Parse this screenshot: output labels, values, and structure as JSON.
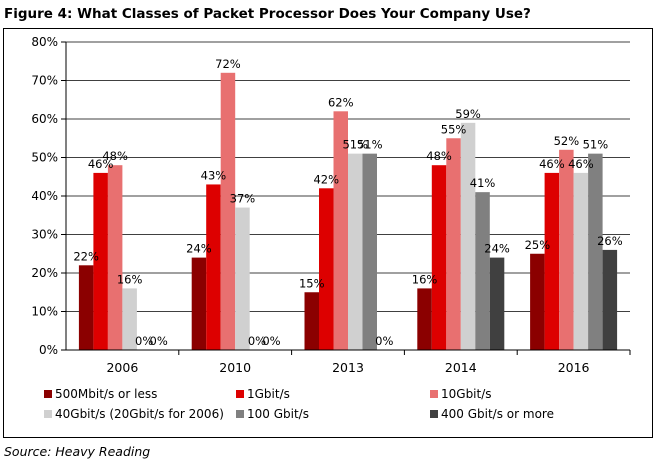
{
  "title": "Figure 4: What Classes of Packet Processor Does Your Company Use?",
  "source": "Source: Heavy Reading",
  "chart_data": {
    "type": "bar",
    "title": "Figure 4: What Classes of Packet Processor Does Your Company Use?",
    "xlabel": "",
    "ylabel": "",
    "categories": [
      "2006",
      "2010",
      "2013",
      "2014",
      "2016"
    ],
    "ylim": [
      0,
      80
    ],
    "yticks": [
      "0%",
      "10%",
      "20%",
      "30%",
      "40%",
      "50%",
      "60%",
      "70%",
      "80%"
    ],
    "grid": true,
    "legend_position": "bottom",
    "series": [
      {
        "name": "500Mbit/s or less",
        "color": "#8b0000",
        "values": [
          22,
          24,
          15,
          16,
          25
        ],
        "labels": [
          "22%",
          "24%",
          "15%",
          "16%",
          "25%"
        ]
      },
      {
        "name": "1Gbit/s",
        "color": "#dd0000",
        "values": [
          46,
          43,
          42,
          48,
          46
        ],
        "labels": [
          "46%",
          "43%",
          "42%",
          "48%",
          "46%"
        ]
      },
      {
        "name": "10Gbit/s",
        "color": "#e87070",
        "values": [
          48,
          72,
          62,
          55,
          52
        ],
        "labels": [
          "48%",
          "72%",
          "62%",
          "55%",
          "52%"
        ]
      },
      {
        "name": "40Gbit/s (20Gbit/s for 2006)",
        "color": "#d0d0d0",
        "values": [
          16,
          37,
          51,
          59,
          46
        ],
        "labels": [
          "16%",
          "37%",
          "51%",
          "59%",
          "46%"
        ]
      },
      {
        "name": "100 Gbit/s",
        "color": "#808080",
        "values": [
          0,
          0,
          51,
          41,
          51
        ],
        "labels": [
          "0%",
          "0%",
          "51%",
          "41%",
          "51%"
        ]
      },
      {
        "name": "400 Gbit/s or more",
        "color": "#404040",
        "values": [
          0,
          0,
          0,
          24,
          26
        ],
        "labels": [
          "0%",
          "0%",
          "0%",
          "24%",
          "26%"
        ]
      }
    ]
  }
}
